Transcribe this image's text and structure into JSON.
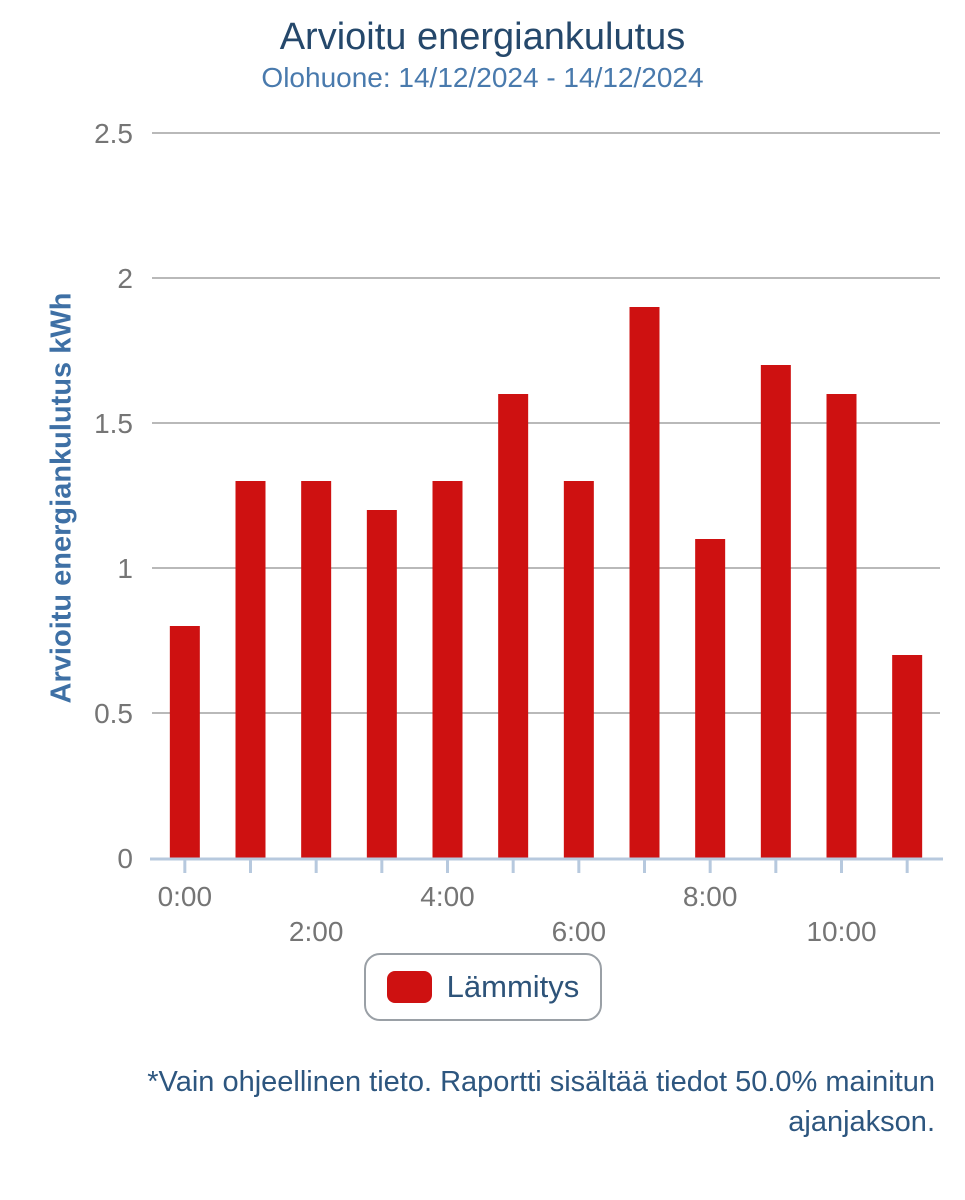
{
  "header": {
    "title": "Arvioitu energiankulutus",
    "subtitle": "Olohuone: 14/12/2024 - 14/12/2024"
  },
  "chart_data": {
    "type": "bar",
    "title": "Arvioitu energiankulutus",
    "subtitle": "Olohuone: 14/12/2024 - 14/12/2024",
    "xlabel": "",
    "ylabel": "Arvioitu energiankulutus kWh",
    "ylim": [
      0,
      2.5
    ],
    "yticks": [
      0,
      0.5,
      1,
      1.5,
      2,
      2.5
    ],
    "grid": true,
    "legend_position": "bottom",
    "categories": [
      "0:00",
      "1:00",
      "2:00",
      "3:00",
      "4:00",
      "5:00",
      "6:00",
      "7:00",
      "8:00",
      "9:00",
      "10:00",
      "11:00"
    ],
    "x_tick_labels": [
      {
        "label": "0:00",
        "index": 0,
        "row": 1
      },
      {
        "label": "2:00",
        "index": 2,
        "row": 2
      },
      {
        "label": "4:00",
        "index": 4,
        "row": 1
      },
      {
        "label": "6:00",
        "index": 6,
        "row": 2
      },
      {
        "label": "8:00",
        "index": 8,
        "row": 1
      },
      {
        "label": "10:00",
        "index": 10,
        "row": 2
      }
    ],
    "series": [
      {
        "name": "Lämmitys",
        "values": [
          0.8,
          1.3,
          1.3,
          1.2,
          1.3,
          1.6,
          1.3,
          1.9,
          1.1,
          1.7,
          1.6,
          0.7
        ]
      }
    ]
  },
  "legend": {
    "items": [
      {
        "label": "Lämmitys",
        "color": "#ce1111"
      }
    ]
  },
  "footnote": {
    "text": "*Vain ohjeellinen tieto. Raportti sisältää tiedot 50.0% mainitun ajanjakson."
  },
  "colors": {
    "bar": "#ce1111",
    "title": "#25486b",
    "subtitle": "#497aad",
    "y_axis_title": "#3e70a5",
    "tick_label": "#757575",
    "gridline": "#b9b9b9",
    "axis_line": "#b7c9de",
    "legend_text": "#2d5379",
    "legend_border": "#9aa0a6",
    "footnote_text": "#2d567f"
  }
}
